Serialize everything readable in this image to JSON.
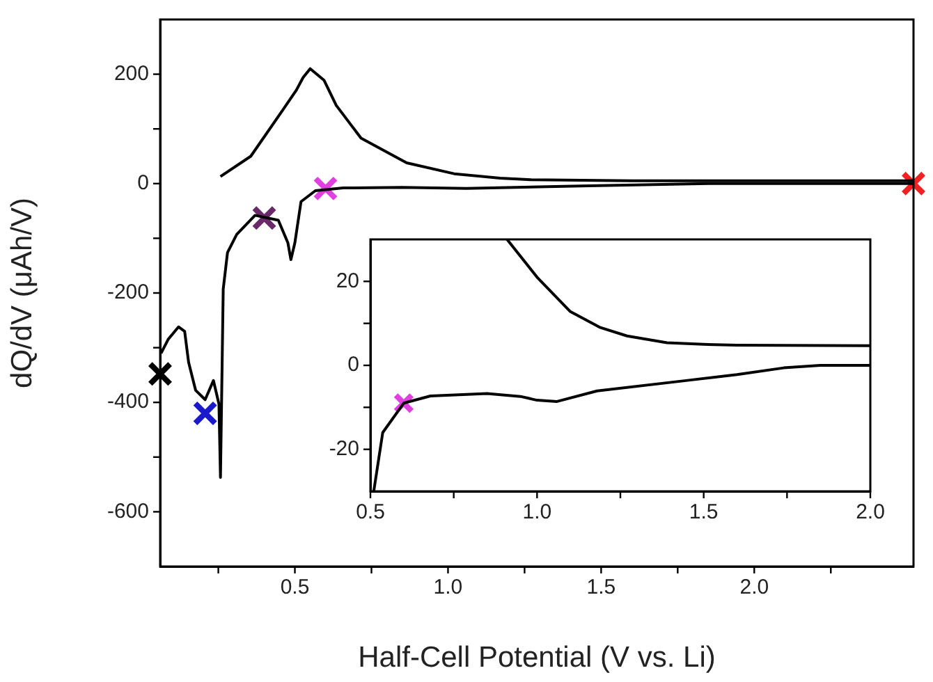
{
  "chart_data": [
    {
      "type": "line",
      "xlabel": "Half-Cell Potential (V vs. Li)",
      "ylabel": "dQ/dV (μAh/V)",
      "xlim": [
        0.06,
        2.52
      ],
      "ylim": [
        -700,
        300
      ],
      "xticks": [
        {
          "value": 0.25,
          "label": null
        },
        {
          "value": 0.5,
          "label": "0.5"
        },
        {
          "value": 0.75,
          "label": null
        },
        {
          "value": 1,
          "label": "1.0"
        },
        {
          "value": 1.25,
          "label": null
        },
        {
          "value": 1.5,
          "label": "1.5"
        },
        {
          "value": 1.75,
          "label": null
        },
        {
          "value": 2,
          "label": "2.0"
        },
        {
          "value": 2.25,
          "label": null
        }
      ],
      "yticks": [
        -600,
        {
          "value": -500,
          "label": null
        },
        -400,
        {
          "value": -300,
          "label": null
        },
        -200,
        {
          "value": -100,
          "label": null
        },
        0,
        {
          "value": 100,
          "label": null
        },
        200
      ],
      "grid": false,
      "legend": false,
      "series": [
        {
          "type": "line",
          "color": "#000000",
          "x": [
            0.257,
            0.356,
            0.46,
            0.505,
            0.527,
            0.55,
            0.595,
            0.635,
            0.716,
            0.865,
            1.02,
            1.17,
            1.27,
            1.6,
            2.0,
            2.52
          ],
          "values": [
            13,
            50,
            134,
            171,
            194,
            210,
            189,
            143,
            83,
            38,
            18,
            10,
            7,
            5,
            5,
            5
          ]
        },
        {
          "type": "line",
          "color": "#000000",
          "x": [
            0.063,
            0.086,
            0.12,
            0.14,
            0.153,
            0.176,
            0.207,
            0.234,
            0.252,
            0.257,
            0.266,
            0.28,
            0.31,
            0.37,
            0.446,
            0.477,
            0.487,
            0.5,
            0.52,
            0.567,
            0.658,
            0.85,
            1.06,
            1.46,
            1.85,
            2.52
          ],
          "values": [
            -310,
            -285,
            -262,
            -270,
            -327,
            -378,
            -395,
            -360,
            -403,
            -537,
            -193,
            -126,
            -93,
            -58,
            -67,
            -108,
            -139,
            -108,
            -33,
            -13,
            -8,
            -7,
            -9,
            -4,
            0,
            0
          ]
        },
        {
          "type": "scatter",
          "marker": "cross",
          "x": [
            0.06,
            0.207,
            0.4,
            0.6,
            2.52
          ],
          "values": [
            -348,
            -420,
            -63,
            -9,
            0
          ],
          "colors": [
            "#000000",
            "#1a1acc",
            "#6a2a6a",
            "#e040e0",
            "#ee2222"
          ]
        }
      ]
    },
    {
      "type": "line",
      "xlim": [
        0.5,
        2.0
      ],
      "ylim": [
        -30,
        30
      ],
      "xticks": [
        {
          "value": 0.5,
          "label": "0.5"
        },
        {
          "value": 0.75,
          "label": null
        },
        {
          "value": 1,
          "label": "1.0"
        },
        {
          "value": 1.25,
          "label": null
        },
        {
          "value": 1.5,
          "label": "1.5"
        },
        {
          "value": 1.75,
          "label": null
        },
        {
          "value": 2,
          "label": "2.0"
        }
      ],
      "yticks": [
        -20,
        {
          "value": -10,
          "label": null
        },
        0,
        {
          "value": 10,
          "label": null
        },
        20
      ],
      "grid": false,
      "legend": false,
      "series": [
        {
          "type": "line",
          "color": "#000000",
          "x": [
            0.91,
            1.0,
            1.1,
            1.19,
            1.27,
            1.39,
            1.5,
            1.6,
            2.0
          ],
          "values": [
            30,
            21,
            12.8,
            9,
            7,
            5.4,
            5,
            4.8,
            4.7
          ]
        },
        {
          "type": "line",
          "color": "#000000",
          "x": [
            0.51,
            0.537,
            0.6,
            0.68,
            0.85,
            0.95,
            1.0,
            1.06,
            1.18,
            1.46,
            1.6,
            1.74,
            1.85,
            2.0
          ],
          "values": [
            -30,
            -16,
            -9,
            -7.3,
            -6.7,
            -7.4,
            -8.3,
            -8.6,
            -6.1,
            -3.5,
            -2.2,
            -0.6,
            0,
            0
          ]
        },
        {
          "type": "scatter",
          "marker": "cross",
          "x": [
            0.6
          ],
          "values": [
            -9
          ],
          "colors": [
            "#e040e0"
          ]
        }
      ]
    }
  ]
}
